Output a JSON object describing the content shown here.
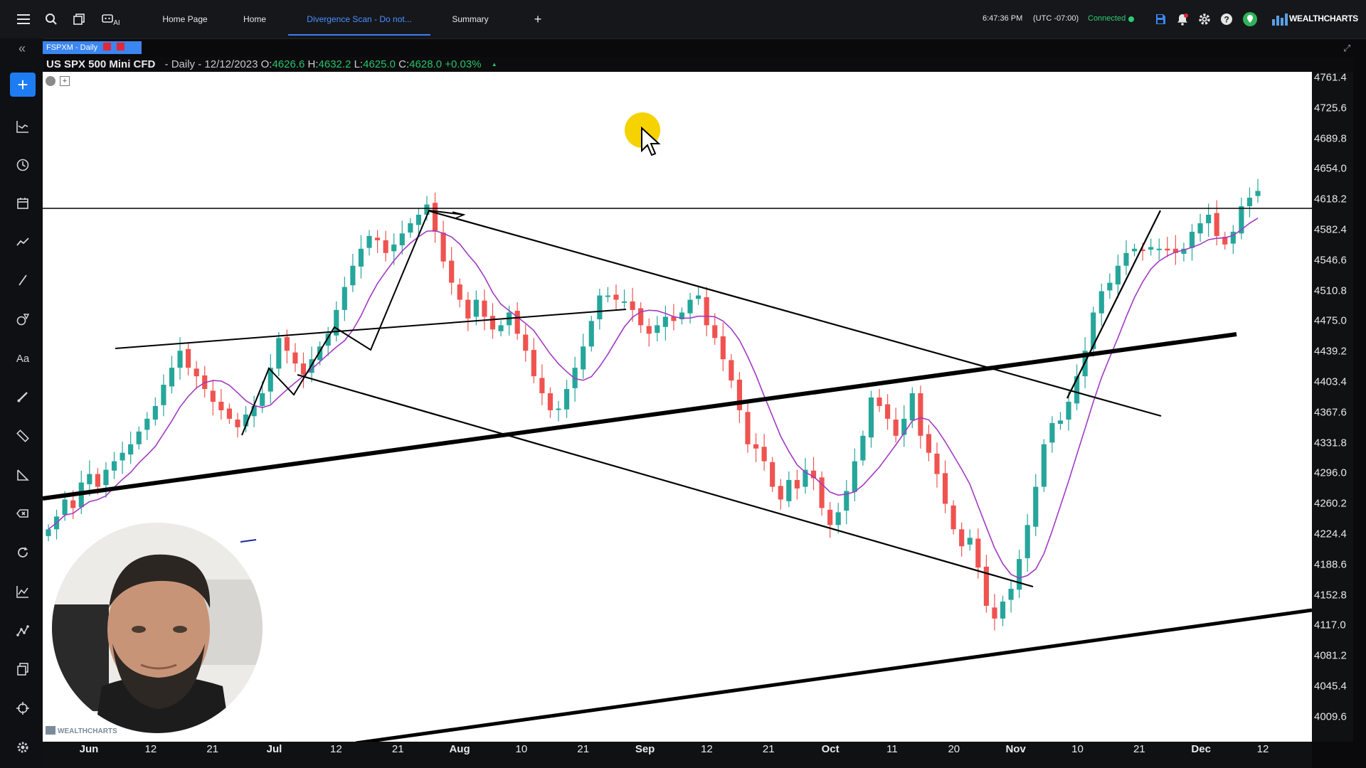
{
  "topbar": {
    "tabs": [
      {
        "label": "Home Page",
        "active": false
      },
      {
        "label": "Home",
        "active": false
      },
      {
        "label": "Divergence Scan - Do not...",
        "active": true
      },
      {
        "label": "Summary",
        "active": false
      }
    ],
    "add_tab_label": "+",
    "ai_label": "AI",
    "time": "6:47:36 PM",
    "timezone": "(UTC -07:00)",
    "connection": "Connected",
    "brand": "WEALTHCHARTS"
  },
  "chart_tab": {
    "label": "FSPXM - Daily"
  },
  "infobar": {
    "symbol": "US SPX 500 Mini CFD",
    "period": "- Daily - 12/12/2023",
    "open_label": "O:",
    "open": "4626.6",
    "high_label": "H:",
    "high": "4632.2",
    "low_label": "L:",
    "low": "4625.0",
    "close_label": "C:",
    "close": "4628.0",
    "change": "+0.03%",
    "up_arrow": "▲"
  },
  "watermark": "WEALTHCHARTS",
  "colors": {
    "up": "#26a69a",
    "down": "#ef5350",
    "ma": "#a23ac4",
    "accent": "#3b86f0"
  },
  "chart_data": {
    "type": "candlestick",
    "title": "US SPX 500 Mini CFD",
    "price_ticks": [
      "4761.4",
      "4725.6",
      "4689.8",
      "4654.0",
      "4618.2",
      "4582.4",
      "4546.6",
      "4510.8",
      "4475.0",
      "4439.2",
      "4403.4",
      "4367.6",
      "4331.8",
      "4296.0",
      "4260.2",
      "4224.4",
      "4188.6",
      "4152.8",
      "4117.0",
      "4081.2",
      "4045.4",
      "4009.6"
    ],
    "ylim": [
      4000,
      4770
    ],
    "date_ticks": [
      "Jun",
      "12",
      "21",
      "Jul",
      "12",
      "21",
      "Aug",
      "10",
      "21",
      "Sep",
      "12",
      "21",
      "Oct",
      "11",
      "20",
      "Nov",
      "10",
      "21",
      "Dec",
      "12"
    ],
    "month_ticks": [
      "Jun",
      "Jul",
      "Aug",
      "Sep",
      "Oct",
      "Nov",
      "Dec"
    ],
    "closes": [
      4230,
      4245,
      4265,
      4255,
      4285,
      4295,
      4280,
      4300,
      4310,
      4320,
      4330,
      4345,
      4360,
      4375,
      4400,
      4420,
      4440,
      4420,
      4410,
      4395,
      4380,
      4370,
      4360,
      4350,
      4365,
      4375,
      4390,
      4420,
      4455,
      4440,
      4425,
      4412,
      4430,
      4445,
      4460,
      4488,
      4515,
      4540,
      4560,
      4575,
      4570,
      4555,
      4565,
      4578,
      4590,
      4600,
      4612,
      4580,
      4545,
      4520,
      4500,
      4478,
      4500,
      4480,
      4465,
      4470,
      4485,
      4460,
      4440,
      4410,
      4390,
      4370,
      4372,
      4395,
      4420,
      4445,
      4475,
      4505,
      4505,
      4500,
      4498,
      4488,
      4470,
      4460,
      4470,
      4480,
      4475,
      4485,
      4500,
      4505,
      4470,
      4455,
      4430,
      4405,
      4370,
      4330,
      4325,
      4310,
      4280,
      4265,
      4288,
      4278,
      4300,
      4290,
      4255,
      4235,
      4250,
      4275,
      4310,
      4340,
      4385,
      4375,
      4360,
      4340,
      4360,
      4390,
      4340,
      4320,
      4295,
      4260,
      4230,
      4210,
      4220,
      4185,
      4140,
      4125,
      4145,
      4160,
      4195,
      4235,
      4280,
      4330,
      4355,
      4358,
      4380,
      4410,
      4440,
      4485,
      4510,
      4520,
      4540,
      4555,
      4560,
      4558,
      4562,
      4560,
      4558,
      4555,
      4560,
      4580,
      4590,
      4600,
      4575,
      4565,
      4580,
      4610,
      4620,
      4628
    ]
  }
}
